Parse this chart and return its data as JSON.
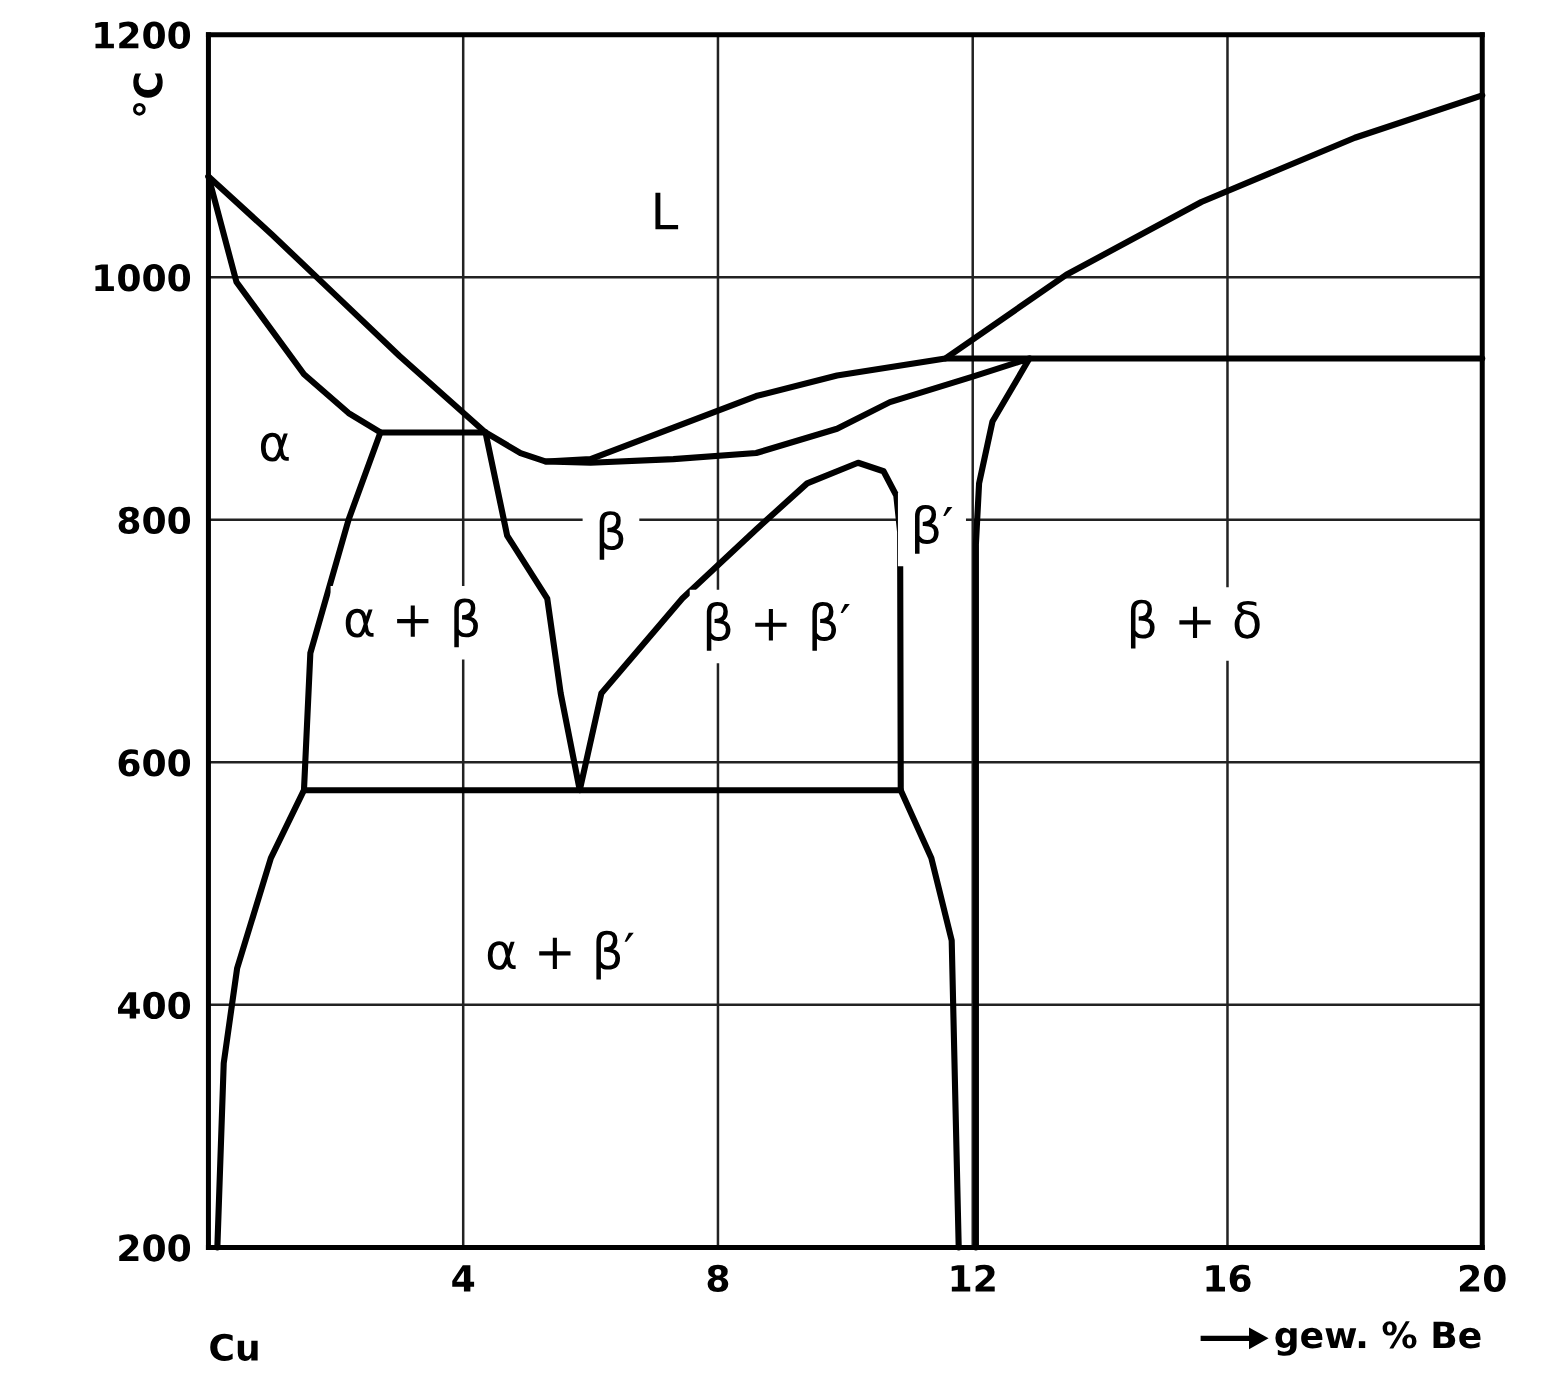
{
  "chart_data": {
    "type": "line",
    "ylabel": "°C",
    "xlabel": "gew. % Be",
    "xlim": [
      0,
      20
    ],
    "ylim": [
      200,
      1200
    ],
    "xticks": [
      {
        "value": 0,
        "label": null
      },
      4,
      8,
      12,
      16,
      20
    ],
    "yticks": [
      200,
      400,
      600,
      800,
      1000,
      1200
    ],
    "grid": true,
    "legend": false,
    "marker": "none",
    "line_style": "solid",
    "series": [
      {
        "color": "#000000",
        "x": [
          0,
          1.0,
          2.0,
          3.0,
          4.35,
          4.9,
          5.3,
          6.0,
          7.3,
          8.6,
          9.87,
          11.57,
          13.47,
          15.59,
          18.0,
          20
        ],
        "values": [
          1083,
          1035,
          985,
          935,
          872,
          855,
          848,
          850,
          876,
          902,
          919,
          933,
          1002,
          1062,
          1115,
          1150
        ]
      },
      {
        "color": "#000000",
        "x": [
          0,
          0.44,
          1.5,
          2.2,
          2.7,
          4.35
        ],
        "values": [
          1083,
          996,
          920,
          888,
          872,
          872
        ]
      },
      {
        "color": "#000000",
        "x": [
          2.7,
          2.2,
          1.6,
          1.5,
          0.98,
          0.45,
          0.24,
          0.14
        ],
        "values": [
          872,
          800,
          690,
          577,
          521,
          430,
          352,
          200
        ]
      },
      {
        "color": "#000000",
        "x": [
          1.5,
          10.87
        ],
        "values": [
          577,
          577
        ]
      },
      {
        "color": "#000000",
        "x": [
          4.35,
          4.69,
          5.32,
          5.53,
          5.83,
          6.17,
          7.44,
          8.6,
          9.4,
          10.2,
          10.6,
          10.8,
          10.86,
          10.87,
          11.35,
          11.67,
          11.78
        ],
        "values": [
          872,
          787,
          735,
          657,
          577,
          657,
          735,
          792,
          830,
          847,
          840,
          820,
          790,
          577,
          521,
          453,
          200
        ]
      },
      {
        "color": "#000000",
        "x": [
          5.3,
          6.0,
          7.3,
          8.6,
          9.87,
          10.7,
          12.0,
          12.89,
          12.31,
          12.1,
          12.05,
          12.05
        ],
        "values": [
          848,
          847,
          850,
          855,
          875,
          897,
          918,
          933,
          881,
          830,
          780,
          200
        ]
      },
      {
        "color": "#000000",
        "x": [
          11.57,
          20
        ],
        "values": [
          933,
          933
        ]
      }
    ],
    "annotations": [
      "L",
      "α",
      "β",
      "α + β",
      "β + β′",
      "β′",
      "β + δ",
      "α + β′",
      "Cu"
    ]
  }
}
